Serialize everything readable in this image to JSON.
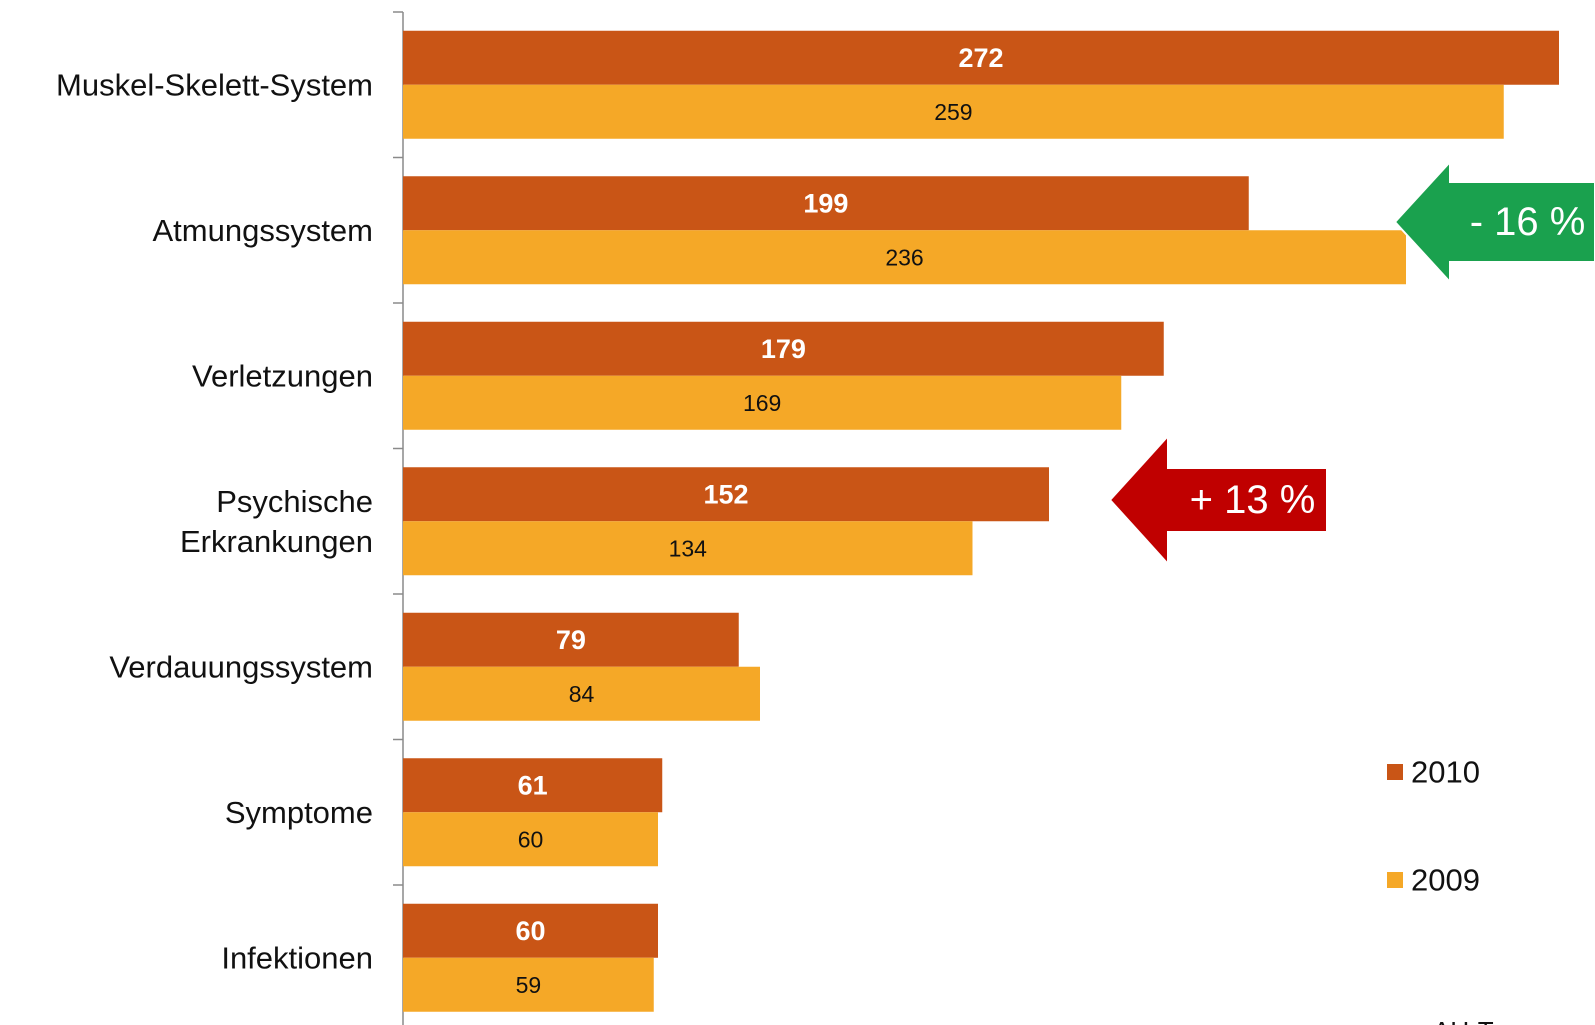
{
  "chart_data": {
    "type": "bar",
    "orientation": "horizontal",
    "categories": [
      [
        "Muskel-Skelett-System"
      ],
      [
        "Atmungssystem"
      ],
      [
        "Verletzungen"
      ],
      [
        "Psychische",
        "Erkrankungen"
      ],
      [
        "Verdauungssystem"
      ],
      [
        "Symptome"
      ],
      [
        "Infektionen"
      ]
    ],
    "series": [
      {
        "name": "2010",
        "color": "#C95516",
        "values": [
          272,
          199,
          179,
          152,
          79,
          61,
          60
        ]
      },
      {
        "name": "2009",
        "color": "#F5A827",
        "values": [
          259,
          236,
          169,
          134,
          84,
          60,
          59
        ]
      }
    ],
    "xlim": [
      0,
      272
    ],
    "legend": {
      "placement": "bottom-right",
      "items": [
        "2010",
        "2009"
      ]
    },
    "annotations": [
      {
        "text": "- 16 %",
        "category": "Atmungssystem",
        "color": "#1AA14E"
      },
      {
        "text": "+ 13 %",
        "category": "Psychische Erkrankungen",
        "color": "#C00000"
      }
    ],
    "axis_note": "AU-Tage pro",
    "grid": false
  }
}
